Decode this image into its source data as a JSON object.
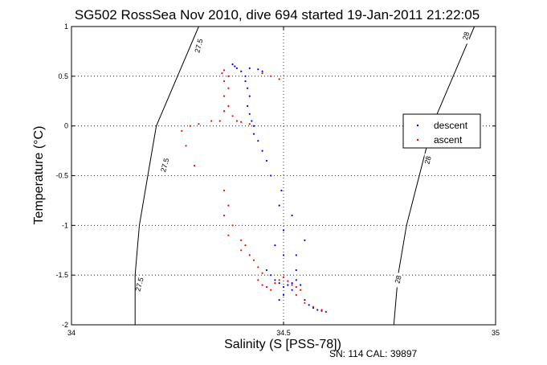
{
  "chart_data": {
    "type": "scatter",
    "title": "SG502 RossSea Nov 2010, dive 694 started 19-Jan-2011 21:22:05",
    "xlabel": "Salinity (S [PSS-78])",
    "ylabel": "Temperature (°C)",
    "xlim": [
      34,
      35
    ],
    "ylim": [
      -2,
      1
    ],
    "x_ticks": [
      "34",
      "34.5",
      "35"
    ],
    "x_tick_values": [
      34,
      34.5,
      35
    ],
    "y_ticks": [
      "-2",
      "-1.5",
      "-1",
      "-0.5",
      "0",
      "0.5",
      "1"
    ],
    "y_tick_values": [
      -2,
      -1.5,
      -1,
      -0.5,
      0,
      0.5,
      1
    ],
    "grid": true,
    "legend_position": "right",
    "footer": "SN: 114  CAL: 39897",
    "colors": {
      "descent": "#0000ff",
      "ascent": "#ff0000",
      "contour": "#000000"
    },
    "contours": [
      {
        "label": "27.5",
        "points": [
          [
            34.3,
            1.0
          ],
          [
            34.25,
            0.5
          ],
          [
            34.2,
            0.0
          ],
          [
            34.18,
            -0.5
          ],
          [
            34.16,
            -1.0
          ],
          [
            34.15,
            -1.5
          ],
          [
            34.15,
            -2.0
          ]
        ],
        "label_points": [
          [
            34.3,
            0.8
          ],
          [
            34.22,
            -0.4
          ],
          [
            34.16,
            -1.6
          ]
        ]
      },
      {
        "label": "28",
        "points": [
          [
            34.95,
            1.0
          ],
          [
            34.9,
            0.5
          ],
          [
            34.85,
            0.0
          ],
          [
            34.82,
            -0.5
          ],
          [
            34.79,
            -1.0
          ],
          [
            34.77,
            -1.5
          ],
          [
            34.76,
            -2.0
          ]
        ],
        "label_points": [
          [
            34.93,
            0.9
          ],
          [
            34.84,
            -0.35
          ],
          [
            34.77,
            -1.55
          ]
        ]
      }
    ],
    "series": [
      {
        "name": "descent",
        "points": [
          [
            34.38,
            0.62
          ],
          [
            34.385,
            0.6
          ],
          [
            34.39,
            0.58
          ],
          [
            34.4,
            0.55
          ],
          [
            34.41,
            0.5
          ],
          [
            34.42,
            0.58
          ],
          [
            34.44,
            0.57
          ],
          [
            34.45,
            0.55
          ],
          [
            34.41,
            0.45
          ],
          [
            34.415,
            0.38
          ],
          [
            34.42,
            0.3
          ],
          [
            34.415,
            0.2
          ],
          [
            34.42,
            0.12
          ],
          [
            34.425,
            0.05
          ],
          [
            34.43,
            0.0
          ],
          [
            34.43,
            -0.08
          ],
          [
            34.44,
            -0.15
          ],
          [
            34.45,
            -0.25
          ],
          [
            34.46,
            -0.35
          ],
          [
            34.47,
            -0.5
          ],
          [
            34.495,
            -0.65
          ],
          [
            34.49,
            -0.8
          ],
          [
            34.52,
            -0.9
          ],
          [
            34.5,
            -1.05
          ],
          [
            34.48,
            -1.2
          ],
          [
            34.5,
            -1.3
          ],
          [
            34.53,
            -1.3
          ],
          [
            34.55,
            -1.15
          ],
          [
            34.53,
            -1.45
          ],
          [
            34.46,
            -1.45
          ],
          [
            34.47,
            -1.5
          ],
          [
            34.48,
            -1.55
          ],
          [
            34.49,
            -1.58
          ],
          [
            34.5,
            -1.62
          ],
          [
            34.51,
            -1.6
          ],
          [
            34.52,
            -1.58
          ],
          [
            34.53,
            -1.55
          ],
          [
            34.54,
            -1.6
          ],
          [
            34.52,
            -1.65
          ],
          [
            34.5,
            -1.7
          ],
          [
            34.49,
            -1.75
          ],
          [
            34.55,
            -1.75
          ],
          [
            34.56,
            -1.8
          ],
          [
            34.57,
            -1.83
          ],
          [
            34.58,
            -1.85
          ],
          [
            34.59,
            -1.86
          ],
          [
            34.6,
            -1.87
          ]
        ]
      },
      {
        "name": "ascent",
        "points": [
          [
            34.36,
            0.56
          ],
          [
            34.355,
            0.53
          ],
          [
            34.37,
            0.5
          ],
          [
            34.36,
            0.45
          ],
          [
            34.37,
            0.38
          ],
          [
            34.36,
            0.3
          ],
          [
            34.37,
            0.2
          ],
          [
            34.36,
            0.15
          ],
          [
            34.38,
            0.1
          ],
          [
            34.39,
            0.05
          ],
          [
            34.4,
            0.04
          ],
          [
            34.42,
            0.02
          ],
          [
            34.35,
            0.05
          ],
          [
            34.33,
            0.05
          ],
          [
            34.3,
            0.02
          ],
          [
            34.28,
            0.0
          ],
          [
            34.26,
            -0.05
          ],
          [
            34.45,
            0.53
          ],
          [
            34.47,
            0.5
          ],
          [
            34.49,
            0.47
          ],
          [
            34.27,
            -0.2
          ],
          [
            34.29,
            -0.4
          ],
          [
            34.36,
            -0.65
          ],
          [
            34.37,
            -0.8
          ],
          [
            34.36,
            -0.9
          ],
          [
            34.38,
            -1.0
          ],
          [
            34.37,
            -1.1
          ],
          [
            34.4,
            -1.15
          ],
          [
            34.41,
            -1.2
          ],
          [
            34.4,
            -1.25
          ],
          [
            34.42,
            -1.3
          ],
          [
            34.43,
            -1.35
          ],
          [
            34.44,
            -1.42
          ],
          [
            34.45,
            -1.48
          ],
          [
            34.44,
            -1.55
          ],
          [
            34.45,
            -1.6
          ],
          [
            34.46,
            -1.62
          ],
          [
            34.47,
            -1.65
          ],
          [
            34.48,
            -1.58
          ],
          [
            34.49,
            -1.55
          ],
          [
            34.5,
            -1.52
          ],
          [
            34.51,
            -1.56
          ],
          [
            34.52,
            -1.6
          ],
          [
            34.53,
            -1.62
          ],
          [
            34.54,
            -1.65
          ],
          [
            34.53,
            -1.7
          ],
          [
            34.55,
            -1.78
          ],
          [
            34.57,
            -1.82
          ],
          [
            34.59,
            -1.85
          ],
          [
            34.6,
            -1.87
          ]
        ]
      }
    ]
  }
}
